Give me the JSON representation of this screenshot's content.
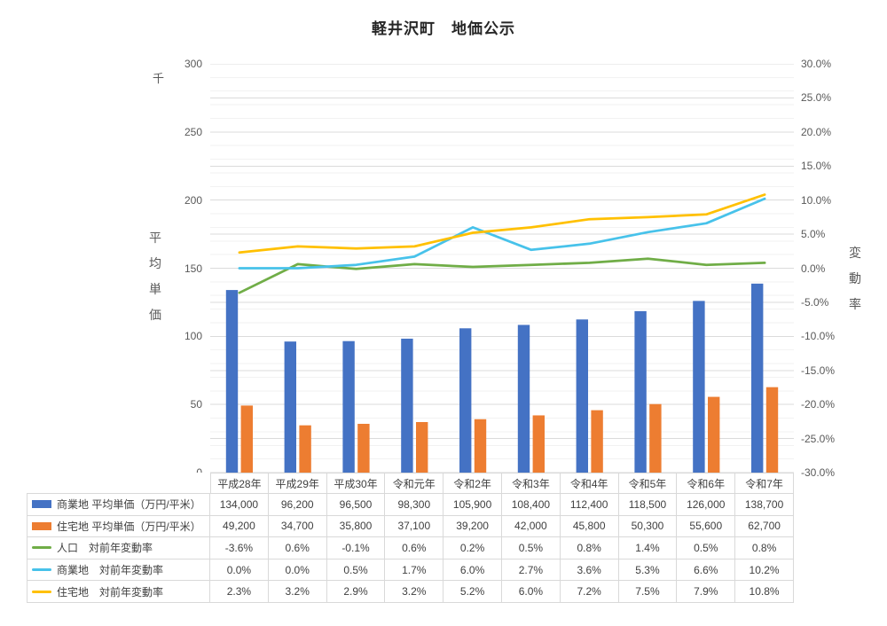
{
  "chart_data": {
    "type": "combo-bar-line",
    "title": "軽井沢町　地価公示",
    "categories": [
      "平成28年",
      "平成29年",
      "平成30年",
      "令和元年",
      "令和2年",
      "令和3年",
      "令和4年",
      "令和5年",
      "令和6年",
      "令和7年"
    ],
    "left_axis": {
      "label": "平均単価",
      "unit": "千",
      "min": 0,
      "max": 300,
      "tick_step": 50,
      "ticks": [
        "300",
        "250",
        "200",
        "150",
        "100",
        "50",
        "0"
      ]
    },
    "right_axis": {
      "label": "変動率",
      "min": -30,
      "max": 30,
      "tick_step": 5,
      "ticks": [
        "30.0%",
        "25.0%",
        "20.0%",
        "15.0%",
        "10.0%",
        "5.0%",
        "0.0%",
        "-5.0%",
        "-10.0%",
        "-15.0%",
        "-20.0%",
        "-25.0%",
        "-30.0%"
      ]
    },
    "grid": {
      "minor_divisions": 30,
      "major_divisions": 12,
      "minor_color": "#F2F2F2",
      "major_color": "#DBDBDB"
    },
    "series": [
      {
        "id": "commercial_price",
        "name": "商業地 平均単価（万円/平米）",
        "type": "bar",
        "axis": "left",
        "divisor": 1000,
        "color": "#4472C4",
        "values": [
          134000,
          96200,
          96500,
          98300,
          105900,
          108400,
          112400,
          118500,
          126000,
          138700
        ],
        "display": [
          "134,000",
          "96,200",
          "96,500",
          "98,300",
          "105,900",
          "108,400",
          "112,400",
          "118,500",
          "126,000",
          "138,700"
        ]
      },
      {
        "id": "residential_price",
        "name": "住宅地 平均単価（万円/平米）",
        "type": "bar",
        "axis": "left",
        "divisor": 1000,
        "color": "#ED7D31",
        "values": [
          49200,
          34700,
          35800,
          37100,
          39200,
          42000,
          45800,
          50300,
          55600,
          62700
        ],
        "display": [
          "49,200",
          "34,700",
          "35,800",
          "37,100",
          "39,200",
          "42,000",
          "45,800",
          "50,300",
          "55,600",
          "62,700"
        ]
      },
      {
        "id": "population_change",
        "name": "人口　対前年変動率",
        "type": "line",
        "axis": "right",
        "divisor": 1,
        "color": "#70AD47",
        "values": [
          -3.6,
          0.6,
          -0.1,
          0.6,
          0.2,
          0.5,
          0.8,
          1.4,
          0.5,
          0.8
        ],
        "display": [
          "-3.6%",
          "0.6%",
          "-0.1%",
          "0.6%",
          "0.2%",
          "0.5%",
          "0.8%",
          "1.4%",
          "0.5%",
          "0.8%"
        ]
      },
      {
        "id": "commercial_change",
        "name": "商業地　対前年変動率",
        "type": "line",
        "axis": "right",
        "divisor": 1,
        "color": "#47C2EA",
        "values": [
          0.0,
          0.0,
          0.5,
          1.7,
          6.0,
          2.7,
          3.6,
          5.3,
          6.6,
          10.2
        ],
        "display": [
          "0.0%",
          "0.0%",
          "0.5%",
          "1.7%",
          "6.0%",
          "2.7%",
          "3.6%",
          "5.3%",
          "6.6%",
          "10.2%"
        ]
      },
      {
        "id": "residential_change",
        "name": "住宅地　対前年変動率",
        "type": "line",
        "axis": "right",
        "divisor": 1,
        "color": "#FFC000",
        "values": [
          2.3,
          3.2,
          2.9,
          3.2,
          5.2,
          6.0,
          7.2,
          7.5,
          7.9,
          10.8
        ],
        "display": [
          "2.3%",
          "3.2%",
          "2.9%",
          "3.2%",
          "5.2%",
          "6.0%",
          "7.2%",
          "7.5%",
          "7.9%",
          "10.8%"
        ]
      }
    ]
  }
}
